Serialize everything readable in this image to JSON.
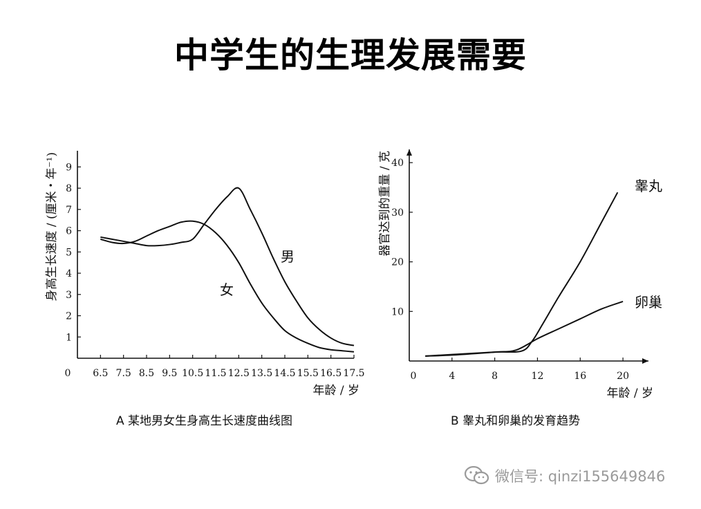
{
  "title": "中学生的生理发展需要",
  "watermark": {
    "icon": "wechat-icon",
    "text": "微信号: qinzi155649846"
  },
  "colors": {
    "line": "#111111",
    "watermark": "#9a9a9a"
  },
  "chart_data": [
    {
      "type": "line",
      "caption": "A 某地男女生身高生长速度曲线图",
      "xlabel": "年龄 / 岁",
      "ylabel": "身高生长速度 / (厘米・年⁻¹)",
      "origin_label": "0",
      "x_ticks": [
        6.5,
        7.5,
        8.5,
        9.5,
        10.5,
        11.5,
        12.5,
        13.5,
        14.5,
        15.5,
        16.5,
        17.5
      ],
      "y_ticks": [
        1,
        2,
        3,
        4,
        5,
        6,
        7,
        8,
        9
      ],
      "xlim": [
        5.5,
        17.5
      ],
      "ylim": [
        0,
        9.5
      ],
      "series": [
        {
          "name": "男",
          "x": [
            6.5,
            7.0,
            7.5,
            8.0,
            8.5,
            9.0,
            9.5,
            10.0,
            10.5,
            11.0,
            11.5,
            12.0,
            12.5,
            13.0,
            13.5,
            14.0,
            14.5,
            15.0,
            15.5,
            16.0,
            16.5,
            17.0,
            17.5
          ],
          "values": [
            5.7,
            5.6,
            5.5,
            5.4,
            5.3,
            5.3,
            5.35,
            5.45,
            5.6,
            6.3,
            7.0,
            7.6,
            8.0,
            7.0,
            5.9,
            4.7,
            3.6,
            2.7,
            1.9,
            1.35,
            0.95,
            0.7,
            0.6
          ]
        },
        {
          "name": "女",
          "x": [
            6.5,
            7.0,
            7.5,
            8.0,
            8.5,
            9.0,
            9.5,
            10.0,
            10.5,
            11.0,
            11.5,
            12.0,
            12.5,
            13.0,
            13.5,
            14.0,
            14.5,
            15.0,
            15.5,
            16.0,
            16.5,
            17.0,
            17.5
          ],
          "values": [
            5.6,
            5.45,
            5.4,
            5.5,
            5.75,
            6.0,
            6.2,
            6.4,
            6.45,
            6.3,
            5.9,
            5.3,
            4.5,
            3.5,
            2.6,
            1.9,
            1.3,
            0.95,
            0.7,
            0.5,
            0.4,
            0.35,
            0.3
          ]
        }
      ],
      "grid": false
    },
    {
      "type": "line",
      "caption": "B 睾丸和卵巢的发育趋势",
      "xlabel": "年龄 / 岁",
      "ylabel": "器官达到的重量 / 克",
      "origin_label": "0",
      "x_ticks": [
        4,
        8,
        12,
        16,
        20
      ],
      "y_ticks": [
        10,
        20,
        30,
        40
      ],
      "xlim": [
        0,
        22
      ],
      "ylim": [
        0,
        41
      ],
      "series": [
        {
          "name": "睾丸",
          "x": [
            1.5,
            4,
            8,
            10.5,
            11.5,
            12.5,
            14,
            16,
            18,
            19.5
          ],
          "values": [
            1,
            1.3,
            1.8,
            2,
            4,
            7.5,
            13,
            20,
            28,
            34
          ]
        },
        {
          "name": "卵巢",
          "x": [
            1.5,
            4,
            8,
            10,
            12,
            14,
            16,
            18,
            20
          ],
          "values": [
            1,
            1.2,
            1.8,
            2.2,
            4.5,
            6.5,
            8.5,
            10.5,
            12
          ]
        }
      ],
      "grid": false
    }
  ]
}
